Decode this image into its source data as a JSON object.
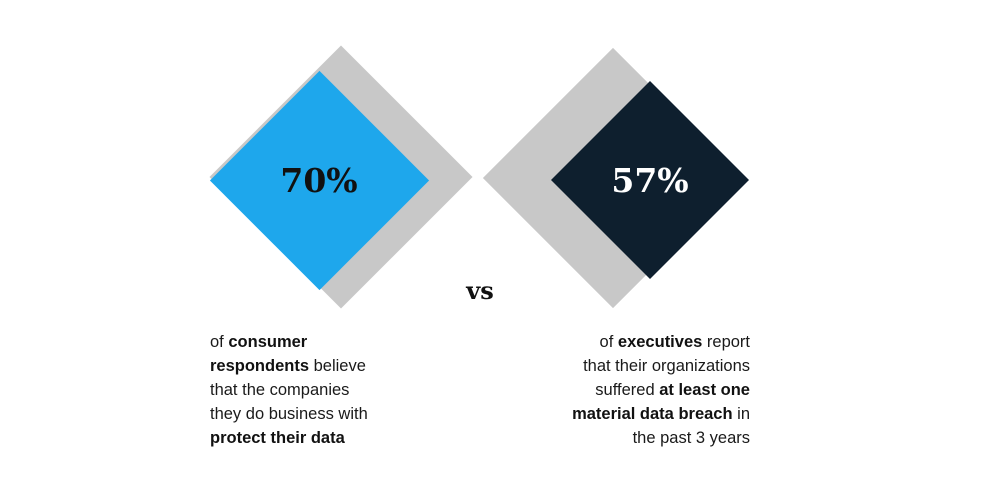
{
  "left": {
    "value": "70%",
    "color": "#1ea7ec",
    "caption": [
      [
        {
          "t": "of ",
          "b": false
        },
        {
          "t": "consumer",
          "b": true
        }
      ],
      [
        {
          "t": "respondents",
          "b": true
        },
        {
          "t": " believe",
          "b": false
        }
      ],
      [
        {
          "t": "that the companies",
          "b": false
        }
      ],
      [
        {
          "t": "they do business with",
          "b": false
        }
      ],
      [
        {
          "t": "protect their data",
          "b": true
        }
      ]
    ]
  },
  "vs_label": "vs",
  "right": {
    "value": "57%",
    "color": "#0e1f2e",
    "caption": [
      [
        {
          "t": "of ",
          "b": false
        },
        {
          "t": "executives",
          "b": true
        },
        {
          "t": " report",
          "b": false
        }
      ],
      [
        {
          "t": "that their organizations",
          "b": false
        }
      ],
      [
        {
          "t": "suffered ",
          "b": false
        },
        {
          "t": "at least one",
          "b": true
        }
      ],
      [
        {
          "t": "material data breach",
          "b": true
        },
        {
          "t": " in",
          "b": false
        }
      ],
      [
        {
          "t": "the past 3 years",
          "b": false
        }
      ]
    ]
  }
}
